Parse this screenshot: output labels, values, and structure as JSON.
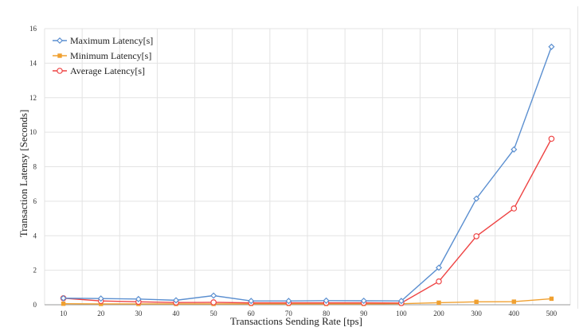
{
  "chart_data": {
    "type": "line",
    "categories": [
      "10",
      "20",
      "30",
      "40",
      "50",
      "60",
      "70",
      "80",
      "90",
      "100",
      "200",
      "300",
      "400",
      "500"
    ],
    "series": [
      {
        "name": "Maximum Latency[s]",
        "color": "#5b8fd0",
        "marker": "diamond",
        "values": [
          0.38,
          0.36,
          0.33,
          0.26,
          0.53,
          0.22,
          0.22,
          0.24,
          0.23,
          0.22,
          2.15,
          6.15,
          9.0,
          14.95
        ]
      },
      {
        "name": "Minimum Latency[s]",
        "color": "#f0a030",
        "marker": "square",
        "values": [
          0.06,
          0.05,
          0.05,
          0.05,
          0.05,
          0.05,
          0.05,
          0.05,
          0.05,
          0.06,
          0.12,
          0.17,
          0.18,
          0.35
        ]
      },
      {
        "name": "Average Latency[s]",
        "color": "#ee4444",
        "marker": "circle",
        "values": [
          0.38,
          0.22,
          0.17,
          0.13,
          0.14,
          0.11,
          0.11,
          0.11,
          0.11,
          0.1,
          1.35,
          3.97,
          5.58,
          9.62
        ]
      }
    ],
    "xlabel": "Transactions Sending Rate  [tps]",
    "ylabel": "Transaction Latensy [Seconds]",
    "ylim": [
      0,
      16
    ],
    "yticks": [
      "0",
      "2",
      "4",
      "6",
      "8",
      "10",
      "12",
      "14",
      "16"
    ],
    "grid": true,
    "legend_position": "top-left"
  }
}
